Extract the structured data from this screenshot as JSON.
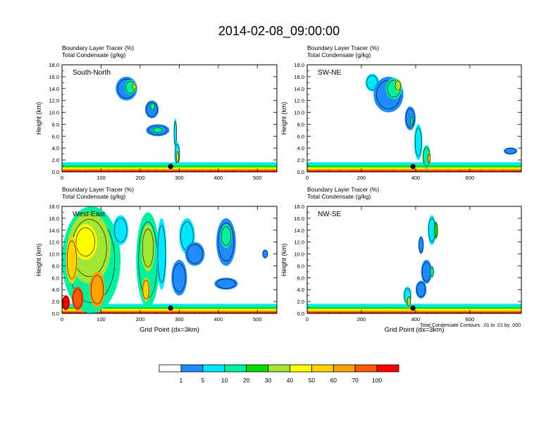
{
  "title": "2014-02-08_09:00:00",
  "colorbar": {
    "levels": [
      "1",
      "5",
      "10",
      "20",
      "30",
      "40",
      "50",
      "60",
      "70",
      "100"
    ],
    "colors": [
      "#ffffff",
      "#1e8cff",
      "#00e6ff",
      "#00f0a0",
      "#00dc00",
      "#a0e632",
      "#ffff00",
      "#ffd200",
      "#ffa000",
      "#ff5a00",
      "#ff0000"
    ]
  },
  "footnote": "Total Condensate Contours: .01 to .01 by .000",
  "chart_data": [
    {
      "type": "heatmap",
      "label": "South-North",
      "subtitle_1": "Boundary Layer Tracer   (%)",
      "subtitle_2": "Total Condensate   (g/kg)",
      "ylabel": "Height (km)",
      "xlabel": "",
      "xlim": [
        0,
        550
      ],
      "ylim": [
        0,
        18
      ],
      "xticks": [
        "0",
        "100",
        "200",
        "300",
        "400",
        "500"
      ],
      "xtick_values": [
        0,
        100,
        200,
        300,
        400,
        500
      ],
      "yticks": [
        "0.0",
        "2.0",
        "4.0",
        "6.0",
        "8.0",
        "10.0",
        "12.0",
        "14.0",
        "16.0",
        "18.0"
      ],
      "marker_x": 278,
      "blobs": [
        {
          "x": 165,
          "y": 14,
          "w": 55,
          "h": 4,
          "level": 1
        },
        {
          "x": 175,
          "y": 14.2,
          "w": 30,
          "h": 2.5,
          "level": 3
        },
        {
          "x": 185,
          "y": 14.3,
          "w": 12,
          "h": 1.2,
          "level": 5
        },
        {
          "x": 230,
          "y": 10.5,
          "w": 35,
          "h": 3,
          "level": 1
        },
        {
          "x": 232,
          "y": 11,
          "w": 14,
          "h": 1.3,
          "level": 3
        },
        {
          "x": 245,
          "y": 7,
          "w": 60,
          "h": 2,
          "level": 1
        },
        {
          "x": 245,
          "y": 7,
          "w": 30,
          "h": 1,
          "level": 3
        },
        {
          "x": 290,
          "y": 6.5,
          "w": 8,
          "h": 5,
          "level": 2
        },
        {
          "x": 295,
          "y": 3,
          "w": 14,
          "h": 4,
          "level": 2
        },
        {
          "x": 296,
          "y": 2.5,
          "w": 6,
          "h": 2.5,
          "level": 6
        }
      ]
    },
    {
      "type": "heatmap",
      "label": "SW-NE",
      "subtitle_1": "Boundary Layer Tracer   (%)",
      "subtitle_2": "Total Condensate   (g/kg)",
      "ylabel": "Height (km)",
      "xlabel": "",
      "xlim": [
        0,
        790
      ],
      "ylim": [
        0,
        18
      ],
      "xticks": [
        "0",
        "200",
        "400",
        "600"
      ],
      "xtick_values": [
        0,
        200,
        400,
        600
      ],
      "yticks": [
        "0.0",
        "2.0",
        "4.0",
        "6.0",
        "8.0",
        "10.0",
        "12.0",
        "14.0",
        "16.0",
        "18.0"
      ],
      "marker_x": 390,
      "blobs": [
        {
          "x": 240,
          "y": 15,
          "w": 50,
          "h": 3,
          "level": 2
        },
        {
          "x": 300,
          "y": 13,
          "w": 110,
          "h": 6,
          "level": 1
        },
        {
          "x": 320,
          "y": 14,
          "w": 60,
          "h": 3.5,
          "level": 3
        },
        {
          "x": 335,
          "y": 14.5,
          "w": 25,
          "h": 2,
          "level": 5
        },
        {
          "x": 380,
          "y": 9,
          "w": 40,
          "h": 4,
          "level": 1
        },
        {
          "x": 385,
          "y": 8.5,
          "w": 12,
          "h": 2,
          "level": 3
        },
        {
          "x": 410,
          "y": 5,
          "w": 30,
          "h": 6,
          "level": 2
        },
        {
          "x": 440,
          "y": 2.5,
          "w": 30,
          "h": 4,
          "level": 3
        },
        {
          "x": 450,
          "y": 2.3,
          "w": 10,
          "h": 2,
          "level": 7
        },
        {
          "x": 750,
          "y": 3.5,
          "w": 50,
          "h": 1.2,
          "level": 1
        }
      ]
    },
    {
      "type": "heatmap",
      "label": "West-East",
      "subtitle_1": "Boundary Layer Tracer   (%)",
      "subtitle_2": "Total Condensate   (g/kg)",
      "ylabel": "Height (km)",
      "xlabel": "Grid Point (dx=3km)",
      "xlim": [
        0,
        550
      ],
      "ylim": [
        0,
        18
      ],
      "xticks": [
        "0",
        "100",
        "200",
        "300",
        "400",
        "500"
      ],
      "xtick_values": [
        0,
        100,
        200,
        300,
        400,
        500
      ],
      "yticks": [
        "0.0",
        "2.0",
        "4.0",
        "6.0",
        "8.0",
        "10.0",
        "12.0",
        "14.0",
        "16.0",
        "18.0"
      ],
      "marker_x": 278,
      "blobs": [
        {
          "x": 75,
          "y": 9,
          "w": 150,
          "h": 18,
          "level": 3
        },
        {
          "x": 70,
          "y": 11,
          "w": 110,
          "h": 12,
          "level": 5
        },
        {
          "x": 60,
          "y": 12,
          "w": 60,
          "h": 6,
          "level": 6
        },
        {
          "x": 25,
          "y": 9,
          "w": 30,
          "h": 8,
          "level": 7
        },
        {
          "x": 90,
          "y": 4,
          "w": 40,
          "h": 6,
          "level": 8
        },
        {
          "x": 40,
          "y": 2.5,
          "w": 30,
          "h": 4,
          "level": 9
        },
        {
          "x": 10,
          "y": 1.8,
          "w": 20,
          "h": 2.5,
          "level": 10
        },
        {
          "x": 150,
          "y": 14,
          "w": 40,
          "h": 5,
          "level": 2
        },
        {
          "x": 220,
          "y": 9,
          "w": 60,
          "h": 16,
          "level": 3
        },
        {
          "x": 220,
          "y": 11,
          "w": 35,
          "h": 8,
          "level": 5
        },
        {
          "x": 215,
          "y": 4,
          "w": 20,
          "h": 4,
          "level": 7
        },
        {
          "x": 255,
          "y": 10,
          "w": 25,
          "h": 12,
          "level": 2
        },
        {
          "x": 300,
          "y": 6,
          "w": 40,
          "h": 6,
          "level": 1
        },
        {
          "x": 320,
          "y": 13,
          "w": 40,
          "h": 6,
          "level": 2
        },
        {
          "x": 340,
          "y": 10,
          "w": 50,
          "h": 4,
          "level": 1
        },
        {
          "x": 420,
          "y": 12,
          "w": 50,
          "h": 8,
          "level": 1
        },
        {
          "x": 420,
          "y": 13,
          "w": 30,
          "h": 4,
          "level": 3
        },
        {
          "x": 520,
          "y": 10,
          "w": 15,
          "h": 1.5,
          "level": 1
        },
        {
          "x": 420,
          "y": 5,
          "w": 60,
          "h": 2,
          "level": 1
        }
      ]
    },
    {
      "type": "heatmap",
      "label": "NW-SE",
      "subtitle_1": "Boundary Layer Tracer   (%)",
      "subtitle_2": "Total Condensate   (g/kg)",
      "ylabel": "Height (km)",
      "xlabel": "Grid Point (dx=3km)",
      "xlim": [
        0,
        790
      ],
      "ylim": [
        0,
        18
      ],
      "xticks": [
        "0",
        "200",
        "400",
        "600"
      ],
      "xtick_values": [
        0,
        200,
        400,
        600
      ],
      "yticks": [
        "0.0",
        "2.0",
        "4.0",
        "6.0",
        "8.0",
        "10.0",
        "12.0",
        "14.0",
        "16.0",
        "18.0"
      ],
      "marker_x": 390,
      "blobs": [
        {
          "x": 460,
          "y": 14,
          "w": 30,
          "h": 5,
          "level": 2
        },
        {
          "x": 475,
          "y": 14,
          "w": 14,
          "h": 3,
          "level": 4
        },
        {
          "x": 420,
          "y": 11.5,
          "w": 20,
          "h": 3,
          "level": 1
        },
        {
          "x": 440,
          "y": 7,
          "w": 40,
          "h": 4,
          "level": 1
        },
        {
          "x": 460,
          "y": 7,
          "w": 15,
          "h": 2,
          "level": 3
        },
        {
          "x": 370,
          "y": 3,
          "w": 30,
          "h": 3,
          "level": 2
        },
        {
          "x": 375,
          "y": 2,
          "w": 15,
          "h": 2,
          "level": 5
        },
        {
          "x": 420,
          "y": 4,
          "w": 40,
          "h": 3,
          "level": 1
        }
      ]
    }
  ]
}
